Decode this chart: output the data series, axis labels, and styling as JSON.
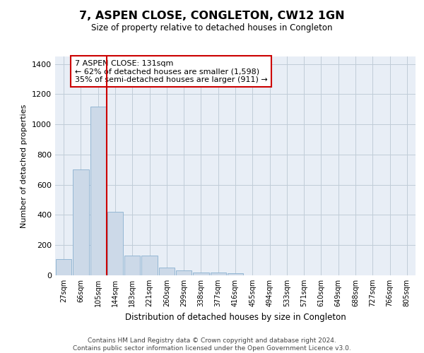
{
  "title": "7, ASPEN CLOSE, CONGLETON, CW12 1GN",
  "subtitle": "Size of property relative to detached houses in Congleton",
  "xlabel": "Distribution of detached houses by size in Congleton",
  "ylabel": "Number of detached properties",
  "bar_color": "#ccd9e8",
  "bar_edge_color": "#8ab0d0",
  "plot_bg_color": "#e8eef6",
  "background_color": "#ffffff",
  "grid_color": "#c0ccd8",
  "vline_color": "#cc0000",
  "annotation_text": "7 ASPEN CLOSE: 131sqm\n← 62% of detached houses are smaller (1,598)\n35% of semi-detached houses are larger (911) →",
  "annotation_box_color": "#ffffff",
  "annotation_box_edge_color": "#cc0000",
  "categories": [
    "27sqm",
    "66sqm",
    "105sqm",
    "144sqm",
    "183sqm",
    "221sqm",
    "260sqm",
    "299sqm",
    "338sqm",
    "377sqm",
    "416sqm",
    "455sqm",
    "494sqm",
    "533sqm",
    "571sqm",
    "610sqm",
    "649sqm",
    "688sqm",
    "727sqm",
    "766sqm",
    "805sqm"
  ],
  "bar_heights": [
    107,
    700,
    1120,
    420,
    130,
    130,
    52,
    35,
    20,
    20,
    12,
    0,
    0,
    0,
    0,
    0,
    0,
    0,
    0,
    0,
    0
  ],
  "ylim": [
    0,
    1450
  ],
  "yticks": [
    0,
    200,
    400,
    600,
    800,
    1000,
    1200,
    1400
  ],
  "footer_line1": "Contains HM Land Registry data © Crown copyright and database right 2024.",
  "footer_line2": "Contains public sector information licensed under the Open Government Licence v3.0."
}
